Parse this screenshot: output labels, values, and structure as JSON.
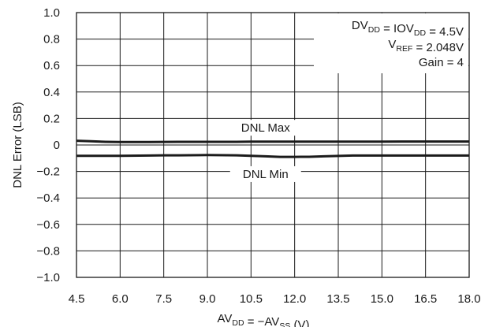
{
  "chart_data": {
    "type": "line",
    "xlabel": {
      "base": "AV",
      "sub1": "DD",
      "mid": " = −AV",
      "sub2": "SS",
      "tail": " (V)"
    },
    "ylabel": "DNL Error (LSB)",
    "xlim": [
      4.5,
      18.0
    ],
    "ylim": [
      -1.0,
      1.0
    ],
    "x_ticks": [
      "4.5",
      "6.0",
      "7.5",
      "9.0",
      "10.5",
      "12.0",
      "13.5",
      "15.0",
      "16.5",
      "18.0"
    ],
    "y_ticks": [
      "1.0",
      "0.8",
      "0.6",
      "0.4",
      "0.2",
      "0",
      "−0.2",
      "−0.4",
      "−0.6",
      "−0.8",
      "−1.0"
    ],
    "grid": true,
    "series": [
      {
        "name": "DNL Max",
        "x": [
          4.5,
          5.0,
          5.5,
          6.0,
          6.5,
          7.0,
          7.5,
          8.0,
          9.0,
          10.0,
          10.5,
          11.0,
          12.0,
          13.0,
          14.0,
          15.0,
          16.0,
          17.0,
          18.0
        ],
        "values": [
          0.032,
          0.028,
          0.024,
          0.022,
          0.022,
          0.022,
          0.023,
          0.024,
          0.024,
          0.024,
          0.025,
          0.025,
          0.025,
          0.025,
          0.025,
          0.025,
          0.026,
          0.026,
          0.026
        ]
      },
      {
        "name": "DNL Min",
        "x": [
          4.5,
          5.0,
          6.0,
          7.0,
          7.5,
          8.0,
          9.0,
          10.0,
          10.5,
          11.0,
          11.5,
          12.0,
          12.5,
          13.0,
          13.5,
          14.0,
          15.0,
          16.0,
          17.0,
          18.0
        ],
        "values": [
          -0.082,
          -0.082,
          -0.082,
          -0.08,
          -0.078,
          -0.078,
          -0.076,
          -0.078,
          -0.082,
          -0.086,
          -0.09,
          -0.09,
          -0.089,
          -0.086,
          -0.083,
          -0.08,
          -0.08,
          -0.08,
          -0.08,
          -0.08
        ]
      }
    ],
    "series_labels": [
      {
        "text": "DNL Max",
        "x": 11.0,
        "y": 0.13
      },
      {
        "text": "DNL Min",
        "x": 11.0,
        "y": -0.22
      }
    ],
    "annotation": [
      {
        "parts": [
          {
            "t": "DV"
          },
          {
            "t": "DD",
            "sub": true
          },
          {
            "t": " = IOV"
          },
          {
            "t": "DD",
            "sub": true
          },
          {
            "t": " = 4.5V"
          }
        ]
      },
      {
        "parts": [
          {
            "t": "V"
          },
          {
            "t": "REF",
            "sub": true
          },
          {
            "t": " = 2.048V"
          }
        ]
      },
      {
        "parts": [
          {
            "t": "Gain = 4"
          }
        ]
      }
    ],
    "colors": {
      "line": "#1a1a1a",
      "grid": "#1a1a1a",
      "background": "#ffffff"
    }
  }
}
